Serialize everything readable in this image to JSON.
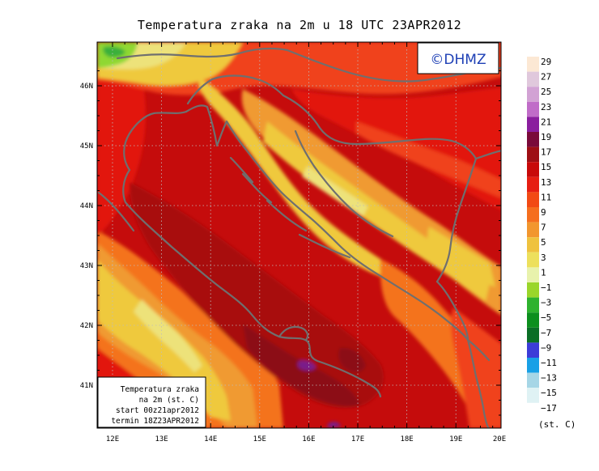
{
  "title": "Temperatura zraka na 2m u 18 UTC 23APR2012",
  "copyright": "©DHMZ",
  "infobox": {
    "line1": "Temperatura zraka",
    "line2": "na 2m (st. C)",
    "line3": "start 00z21apr2012",
    "line4": "termin 18Z23APR2012"
  },
  "axes": {
    "lon_labels": [
      "12E",
      "13E",
      "14E",
      "15E",
      "16E",
      "17E",
      "18E",
      "19E",
      "20E"
    ],
    "lat_labels": [
      "46N",
      "45N",
      "44N",
      "43N",
      "42N",
      "41N"
    ]
  },
  "legend": {
    "unit": "(st. C)",
    "labels": [
      "29",
      "27",
      "25",
      "23",
      "21",
      "19",
      "17",
      "15",
      "13",
      "11",
      "9",
      "7",
      "5",
      "3",
      "1",
      "−1",
      "−3",
      "−5",
      "−7",
      "−9",
      "−11",
      "−13",
      "−15",
      "−17"
    ],
    "colors": [
      "#fce8d4",
      "#e0c8dc",
      "#d2a2d4",
      "#c06cc8",
      "#8a1e9e",
      "#7a0a3a",
      "#9e0e14",
      "#c80a0a",
      "#e61e12",
      "#f24a14",
      "#f56e1e",
      "#f2962e",
      "#efc23e",
      "#ede05c",
      "#e8f2ac",
      "#9ad62a",
      "#2eb22e",
      "#0c8f1e",
      "#0a6e26",
      "#3c3cd8",
      "#18a0e6",
      "#a6d6e6",
      "#dff2f4"
    ]
  },
  "palette": {
    "base": "#c50c0c",
    "dark": "#a80a10",
    "darker": "#8c0816",
    "red": "#e21810",
    "redorange": "#f0421a",
    "orange": "#f4731e",
    "lightorange": "#f09a32",
    "yellow": "#efc93e",
    "paleyellow": "#ede27a",
    "green": "#8fd830",
    "greendark": "#3bb03b",
    "purple": "#7a1e8a",
    "coast": "#6f6f6f",
    "grid": "#bdbdbd"
  }
}
